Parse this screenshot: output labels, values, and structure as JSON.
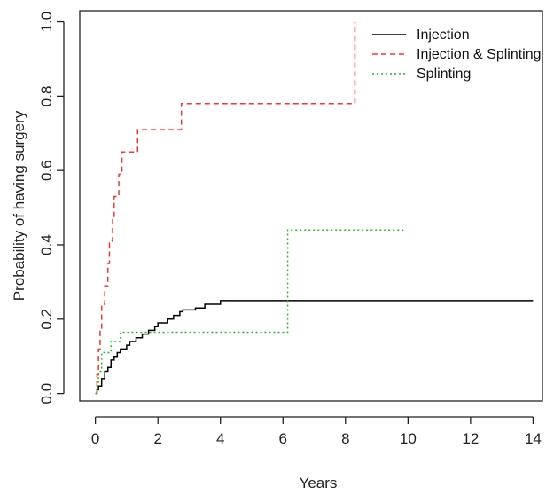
{
  "chart_data": {
    "type": "line",
    "title": "",
    "xlabel": "Years",
    "ylabel": "Probability of having surgery",
    "xlim": [
      -0.5,
      14.3
    ],
    "ylim": [
      -0.02,
      1.03
    ],
    "xticks": [
      0,
      2,
      4,
      6,
      8,
      10,
      12,
      14
    ],
    "xtick_labels": [
      "0",
      "2",
      "4",
      "6",
      "8",
      "10",
      "12",
      "14"
    ],
    "yticks": [
      0.0,
      0.2,
      0.4,
      0.6,
      0.8,
      1.0
    ],
    "ytick_labels": [
      "0.0",
      "0.2",
      "0.4",
      "0.6",
      "0.8",
      "1.0"
    ],
    "grid": false,
    "legend_position": "top-right",
    "step": true,
    "series": [
      {
        "name": "Injection",
        "color": "#000000",
        "dash": "solid",
        "points": [
          [
            0,
            0
          ],
          [
            0.05,
            0.01
          ],
          [
            0.1,
            0.02
          ],
          [
            0.2,
            0.04
          ],
          [
            0.3,
            0.06
          ],
          [
            0.4,
            0.07
          ],
          [
            0.5,
            0.09
          ],
          [
            0.6,
            0.1
          ],
          [
            0.7,
            0.11
          ],
          [
            0.8,
            0.12
          ],
          [
            1.0,
            0.13
          ],
          [
            1.1,
            0.14
          ],
          [
            1.3,
            0.15
          ],
          [
            1.5,
            0.16
          ],
          [
            1.7,
            0.17
          ],
          [
            1.9,
            0.18
          ],
          [
            2.0,
            0.19
          ],
          [
            2.3,
            0.2
          ],
          [
            2.5,
            0.21
          ],
          [
            2.7,
            0.22
          ],
          [
            2.8,
            0.225
          ],
          [
            3.2,
            0.23
          ],
          [
            3.5,
            0.24
          ],
          [
            4.0,
            0.25
          ],
          [
            14.0,
            0.25
          ]
        ]
      },
      {
        "name": "Injection & Splinting",
        "color": "#ff3030",
        "dash": "dashed",
        "points": [
          [
            0,
            0
          ],
          [
            0.05,
            0.05
          ],
          [
            0.1,
            0.12
          ],
          [
            0.15,
            0.17
          ],
          [
            0.2,
            0.24
          ],
          [
            0.3,
            0.29
          ],
          [
            0.4,
            0.35
          ],
          [
            0.45,
            0.41
          ],
          [
            0.55,
            0.47
          ],
          [
            0.6,
            0.53
          ],
          [
            0.75,
            0.59
          ],
          [
            0.85,
            0.65
          ],
          [
            1.35,
            0.71
          ],
          [
            2.75,
            0.78
          ],
          [
            8.3,
            1.0
          ]
        ]
      },
      {
        "name": "Splinting",
        "color": "#20c020",
        "dash": "dotted",
        "points": [
          [
            0,
            0
          ],
          [
            0.05,
            0.03
          ],
          [
            0.1,
            0.06
          ],
          [
            0.2,
            0.11
          ],
          [
            0.5,
            0.14
          ],
          [
            0.8,
            0.165
          ],
          [
            6.15,
            0.44
          ],
          [
            9.9,
            0.44
          ]
        ]
      }
    ]
  }
}
